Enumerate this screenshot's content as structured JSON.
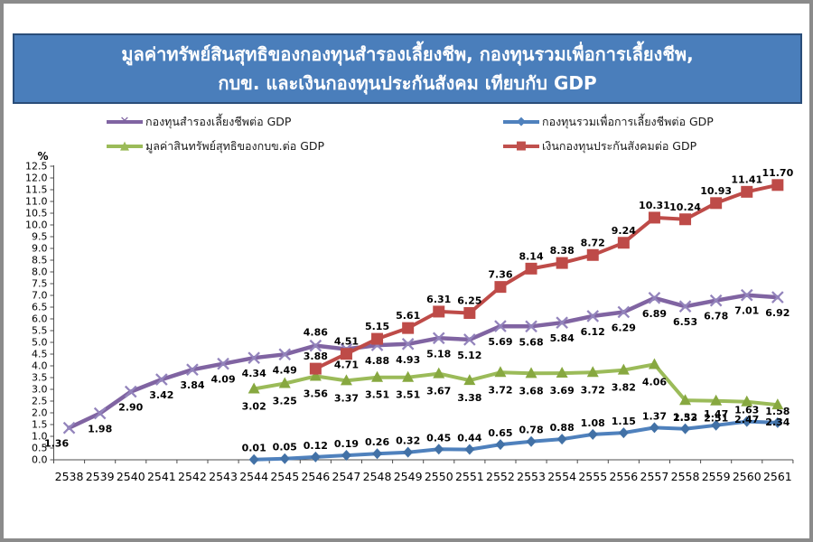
{
  "title": {
    "line1": "มูลค่าทรัพย์สินสุทธิของกองทุนสำรองเลี้ยงชีพ, กองทุนรวมเพื่อการเลี้ยงชีพ,",
    "line2": "กบข. และเงินกองทุนประกันสังคม  เทียบกับ GDP"
  },
  "legend": {
    "items": [
      {
        "label": "กองทุนสำรองเลี้ยงชีพต่อ  GDP",
        "color": "#8064A2",
        "marker": "x",
        "glyph": "✕"
      },
      {
        "label": "กองทุนรวมเพื่อการเลี้ยงชีพต่อ  GDP",
        "color": "#4F81BD",
        "marker": "diamond",
        "glyph": "◆"
      },
      {
        "label": "มูลค่าสินทรัพย์สุทธิของกบข.ต่อ  GDP",
        "color": "#9BBB59",
        "marker": "triangle",
        "glyph": "▲"
      },
      {
        "label": "เงินกองทุนประกันสังคมต่อ  GDP",
        "color": "#C0504D",
        "marker": "square",
        "glyph": "■"
      }
    ]
  },
  "chart_data": {
    "type": "line",
    "title": "มูลค่าทรัพย์สินสุทธิของกองทุนสำรองเลี้ยงชีพ, กองทุนรวมเพื่อการเลี้ยงชีพ, กบข. และเงินกองทุนประกันสังคม เทียบกับ GDP",
    "xlabel": "",
    "ylabel": "%",
    "ylim": [
      0,
      12.5
    ],
    "y_step": 0.5,
    "grid": false,
    "legend_position": "top",
    "categories": [
      "2538",
      "2539",
      "2540",
      "2541",
      "2542",
      "2543",
      "2544",
      "2545",
      "2546",
      "2547",
      "2548",
      "2549",
      "2550",
      "2551",
      "2552",
      "2553",
      "2554",
      "2555",
      "2556",
      "2557",
      "2558",
      "2559",
      "2560",
      "2561"
    ],
    "series": [
      {
        "key": "provident-fund",
        "name": "กองทุนสำรองเลี้ยงชีพต่อ GDP",
        "color": "#8064A2",
        "marker_color": "#9384bc",
        "marker": "x",
        "label_dy": 17,
        "overrides": {
          "0": {
            "dx": -14
          },
          "8": {
            "dy": -15
          }
        },
        "values": [
          1.36,
          1.98,
          2.9,
          3.42,
          3.84,
          4.09,
          4.34,
          4.49,
          4.86,
          4.71,
          4.88,
          4.93,
          5.18,
          5.12,
          5.69,
          5.68,
          5.84,
          6.12,
          6.29,
          6.89,
          6.53,
          6.78,
          7.01,
          6.92
        ]
      },
      {
        "key": "rmf",
        "name": "กองทุนรวมเพื่อการเลี้ยงชีพต่อ GDP",
        "color": "#4F81BD",
        "marker_color": "#4271a6",
        "marker": "diamond",
        "label_dy": -13,
        "overrides": {},
        "values": [
          null,
          null,
          null,
          null,
          null,
          null,
          0.01,
          0.05,
          0.12,
          0.19,
          0.26,
          0.32,
          0.45,
          0.44,
          0.65,
          0.78,
          0.88,
          1.08,
          1.15,
          1.37,
          1.32,
          1.47,
          1.63,
          1.58
        ]
      },
      {
        "key": "gpf",
        "name": "มูลค่าสินทรัพย์สุทธิของกบข.ต่อ GDP",
        "color": "#9BBB59",
        "marker_color": "#87a840",
        "marker": "triangle",
        "label_dy": 19,
        "overrides": {},
        "values": [
          null,
          null,
          null,
          null,
          null,
          null,
          3.02,
          3.25,
          3.56,
          3.37,
          3.51,
          3.51,
          3.67,
          3.38,
          3.72,
          3.68,
          3.69,
          3.72,
          3.82,
          4.06,
          2.53,
          2.51,
          2.47,
          2.34
        ]
      },
      {
        "key": "sso",
        "name": "เงินกองทุนประกันสังคมต่อ GDP",
        "color": "#BE4B48",
        "marker_color": "#BE4B48",
        "marker": "square",
        "label_dy": -14,
        "overrides": {},
        "values": [
          null,
          null,
          null,
          null,
          null,
          null,
          null,
          null,
          3.88,
          4.51,
          5.15,
          5.61,
          6.31,
          6.25,
          7.36,
          8.14,
          8.38,
          8.72,
          9.24,
          10.31,
          10.24,
          10.93,
          11.41,
          11.7
        ]
      }
    ]
  }
}
